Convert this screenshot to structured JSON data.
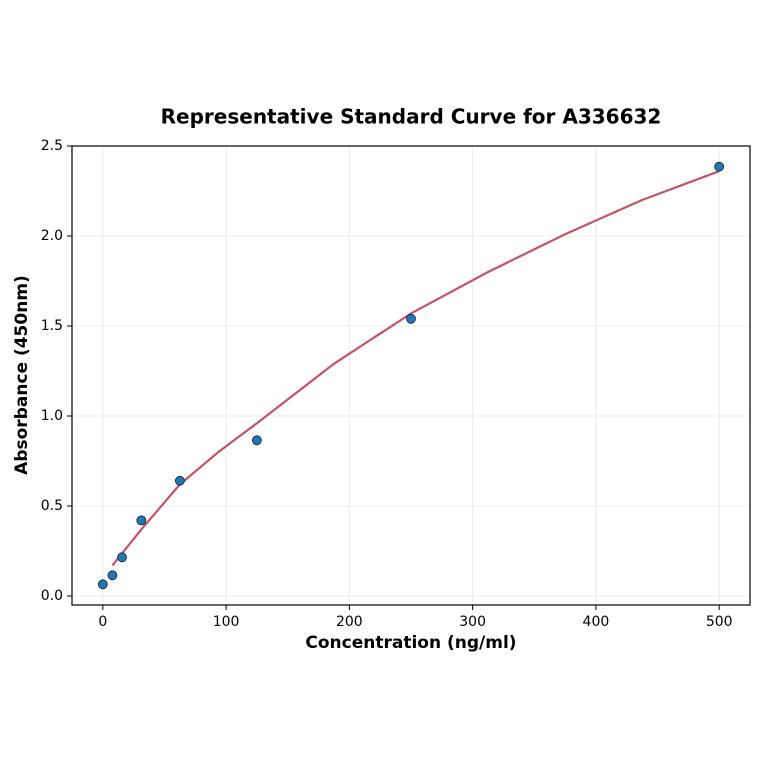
{
  "chart_data": {
    "type": "scatter",
    "title": "Representative Standard Curve for A336632",
    "x_label": "Concentration (ng/ml)",
    "y_label": "Absorbance (450nm)",
    "xlim": [
      -25,
      525
    ],
    "ylim": [
      -0.05,
      2.5
    ],
    "xticks": [
      0,
      100,
      200,
      300,
      400,
      500
    ],
    "yticks": [
      {
        "value": 0,
        "label": "0.0"
      },
      {
        "value": 0.5,
        "label": "0.5"
      },
      {
        "value": 1,
        "label": "1.0"
      },
      {
        "value": 1.5,
        "label": "1.5"
      },
      {
        "value": 2,
        "label": "2.0"
      },
      {
        "value": 2.5,
        "label": "2.5"
      }
    ],
    "grid": true,
    "series": [
      {
        "type": "scatter",
        "color": "#1f77b4",
        "x": [
          0,
          7.8,
          15.6,
          31.25,
          62.5,
          125,
          250,
          500
        ],
        "values": [
          0.065,
          0.115,
          0.215,
          0.42,
          0.64,
          0.865,
          1.54,
          2.385
        ]
      },
      {
        "type": "line",
        "color": "#c0546a",
        "x": [
          7.8,
          31.25,
          62.5,
          93.75,
          125,
          187.5,
          250,
          312.5,
          375,
          437.5,
          500
        ],
        "values": [
          0.17,
          0.37,
          0.62,
          0.8,
          0.96,
          1.29,
          1.57,
          1.8,
          2.01,
          2.2,
          2.36
        ]
      }
    ]
  }
}
